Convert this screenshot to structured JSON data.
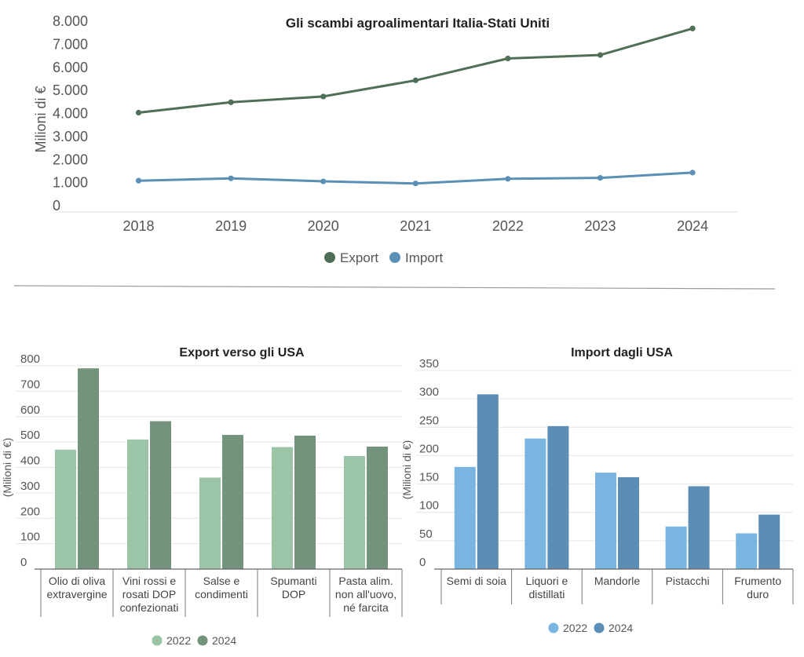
{
  "chart_data": [
    {
      "type": "line",
      "title": "Gli scambi agroalimentari Italia-Stati Uniti",
      "ylabel": "Milioni di €",
      "xlabel": "",
      "x": [
        "2018",
        "2019",
        "2020",
        "2021",
        "2022",
        "2023",
        "2024"
      ],
      "yticks": [
        "0",
        "1.000",
        "2.000",
        "3.000",
        "4.000",
        "5.000",
        "6.000",
        "7.000",
        "8.000"
      ],
      "ylim": [
        0,
        8000
      ],
      "grid": false,
      "legend_position": "bottom",
      "series": [
        {
          "name": "Export",
          "color": "#4f6f57",
          "values": [
            4000,
            4450,
            4700,
            5400,
            6350,
            6500,
            7650
          ]
        },
        {
          "name": "Import",
          "color": "#5b8fb6",
          "values": [
            1050,
            1150,
            1020,
            930,
            1130,
            1170,
            1400
          ]
        }
      ]
    },
    {
      "type": "bar",
      "title": "Export verso gli USA",
      "ylabel": "(Milioni di €)",
      "xlabel": "",
      "categories": [
        "Olio di oliva\nextravergine",
        "Vini rossi e\nrosati DOP\nconfezionati",
        "Salse e\ncondimenti",
        "Spumanti\nDOP",
        "Pasta alim.\nnon all'uovo,\nné farcita"
      ],
      "yticks": [
        "0",
        "100",
        "200",
        "300",
        "400",
        "500",
        "600",
        "700",
        "800"
      ],
      "ylim": [
        0,
        800
      ],
      "grid": true,
      "legend_position": "bottom",
      "series": [
        {
          "name": "2022",
          "color": "#9cc4a6",
          "values": [
            470,
            510,
            360,
            480,
            445
          ]
        },
        {
          "name": "2024",
          "color": "#73937d",
          "values": [
            790,
            582,
            528,
            525,
            482
          ]
        }
      ]
    },
    {
      "type": "bar",
      "title": "Import dagli USA",
      "ylabel": "(Milioni di €)",
      "xlabel": "",
      "categories": [
        "Semi di soia",
        "Liquori e\ndistillati",
        "Mandorle",
        "Pistacchi",
        "Frumento\nduro"
      ],
      "yticks": [
        "0",
        "50",
        "100",
        "150",
        "200",
        "250",
        "300",
        "350"
      ],
      "ylim": [
        0,
        350
      ],
      "grid": true,
      "legend_position": "bottom",
      "series": [
        {
          "name": "2022",
          "color": "#79b5e0",
          "values": [
            180,
            230,
            170,
            75,
            63
          ]
        },
        {
          "name": "2024",
          "color": "#5b8db5",
          "values": [
            308,
            252,
            162,
            146,
            96
          ]
        }
      ]
    }
  ]
}
